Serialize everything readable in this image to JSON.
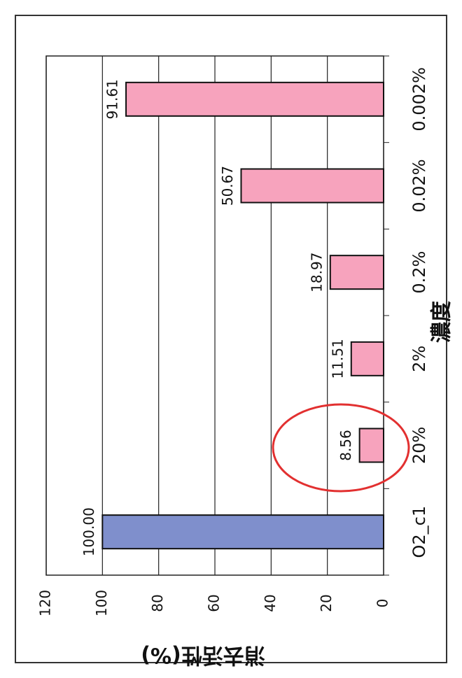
{
  "chart_data": {
    "type": "bar",
    "orientation": "horizontal",
    "x_label": "濃度",
    "y_label": "消去活性(%)",
    "categories": [
      "O2_c1",
      "20%",
      "2%",
      "0.2%",
      "0.02%",
      "0.002%"
    ],
    "values": [
      100,
      8.56,
      11.51,
      18.97,
      50.67,
      91.61
    ],
    "value_labels": [
      "100.00",
      "8.56",
      "11.51",
      "18.97",
      "50.67",
      "91.61"
    ],
    "colors": [
      "#7f8fcc",
      "#f7a3bd",
      "#f7a3bd",
      "#f7a3bd",
      "#f7a3bd",
      "#f7a3bd"
    ],
    "ylim": [
      0,
      120
    ],
    "yticks": [
      0,
      20,
      40,
      60,
      80,
      100,
      120
    ],
    "grid": true
  }
}
